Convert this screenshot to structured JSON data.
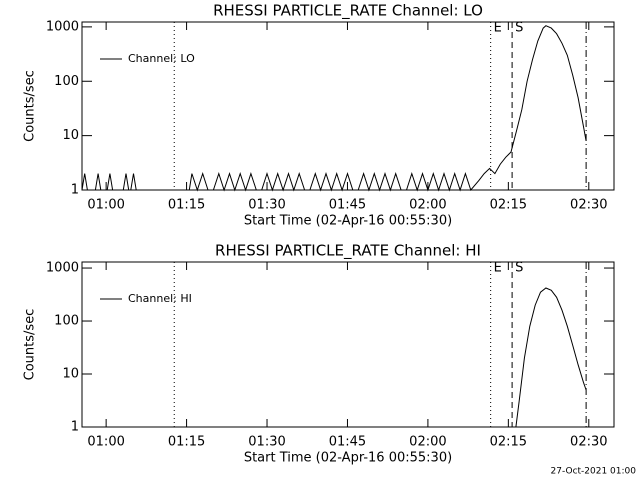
{
  "footer": "27-Oct-2021 01:00",
  "chart_data": [
    {
      "type": "line",
      "title": "RHESSI PARTICLE_RATE Channel: LO",
      "xlabel": "Start Time (02-Apr-16 00:55:30)",
      "ylabel": "Counts/sec",
      "log_y": true,
      "xlim": [
        55.5,
        154.7
      ],
      "ylim": [
        1,
        1230
      ],
      "xticks": [
        {
          "value": 60,
          "label": "01:00"
        },
        {
          "value": 75,
          "label": "01:15"
        },
        {
          "value": 90,
          "label": "01:30"
        },
        {
          "value": 105,
          "label": "01:45"
        },
        {
          "value": 120,
          "label": "02:00"
        },
        {
          "value": 135,
          "label": "02:15"
        },
        {
          "value": 150,
          "label": "02:30"
        }
      ],
      "yticks": [
        1,
        10,
        100,
        1000
      ],
      "legend": "upper left",
      "markers": [
        {
          "x": 72.7,
          "style": "dotted"
        },
        {
          "x": 131.7,
          "style": "dotted",
          "label": "E"
        },
        {
          "x": 135.7,
          "style": "dashed",
          "label": "S"
        },
        {
          "x": 149.5,
          "style": "dashdot"
        }
      ],
      "series": [
        {
          "name": "Channel: LO",
          "color": "#000000",
          "x": [
            55.5,
            56,
            56.5,
            58,
            58.5,
            59,
            60.2,
            60.7,
            61.2,
            63.2,
            63.7,
            64.2,
            64.6,
            65.1,
            65.6,
            75.5,
            76,
            77,
            78,
            79,
            80,
            81,
            82,
            83,
            84,
            85,
            86,
            87,
            88,
            89,
            90,
            91,
            92,
            93,
            94,
            95,
            96,
            97,
            98,
            99,
            100,
            101,
            102,
            103,
            104,
            105,
            106,
            107,
            108,
            109,
            110,
            111,
            112,
            113,
            114,
            115,
            116,
            117,
            118,
            119,
            120,
            121,
            122,
            123,
            124,
            125,
            126,
            127,
            128,
            129.5,
            130.5,
            131.5,
            132.5,
            133.5,
            134.5,
            135.5,
            136.5,
            137.5,
            138.5,
            139.5,
            140.5,
            141.5,
            142,
            143,
            144,
            145,
            146,
            147,
            148,
            149,
            149.5
          ],
          "values": [
            1,
            2,
            1,
            1,
            2,
            1,
            1,
            2,
            1,
            1,
            2,
            1,
            1,
            2,
            1,
            1,
            2,
            1,
            2,
            1,
            1,
            2,
            1,
            2,
            1,
            2,
            1,
            2,
            1,
            1,
            2,
            1,
            2,
            1,
            2,
            1,
            2,
            1,
            1,
            2,
            1,
            2,
            1,
            2,
            1,
            2,
            1,
            1,
            2,
            1,
            2,
            1,
            2,
            1,
            2,
            1,
            1,
            2,
            1,
            2,
            1,
            2,
            1,
            2,
            1,
            2,
            1,
            2,
            1,
            1.5,
            2,
            2.5,
            2,
            3,
            4,
            5,
            12,
            30,
            100,
            250,
            550,
            950,
            1050,
            950,
            750,
            500,
            300,
            130,
            50,
            15,
            8
          ]
        }
      ]
    },
    {
      "type": "line",
      "title": "RHESSI PARTICLE_RATE Channel: HI",
      "xlabel": "Start Time (02-Apr-16 00:55:30)",
      "ylabel": "Counts/sec",
      "log_y": true,
      "xlim": [
        55.5,
        154.7
      ],
      "ylim": [
        1,
        1300
      ],
      "xticks": [
        {
          "value": 60,
          "label": "01:00"
        },
        {
          "value": 75,
          "label": "01:15"
        },
        {
          "value": 90,
          "label": "01:30"
        },
        {
          "value": 105,
          "label": "01:45"
        },
        {
          "value": 120,
          "label": "02:00"
        },
        {
          "value": 135,
          "label": "02:15"
        },
        {
          "value": 150,
          "label": "02:30"
        }
      ],
      "yticks": [
        1,
        10,
        100,
        1000
      ],
      "legend": "upper left",
      "markers": [
        {
          "x": 72.7,
          "style": "dotted"
        },
        {
          "x": 131.7,
          "style": "dotted",
          "label": "E"
        },
        {
          "x": 135.7,
          "style": "dashed",
          "label": "S"
        },
        {
          "x": 149.5,
          "style": "dashdot"
        }
      ],
      "series": [
        {
          "name": "Channel: HI",
          "color": "#000000",
          "x": [
            136.4,
            137,
            138,
            139,
            140,
            141,
            142,
            143,
            144,
            145,
            146,
            147,
            148,
            149,
            149.5
          ],
          "values": [
            1,
            3,
            20,
            80,
            200,
            350,
            420,
            380,
            280,
            160,
            80,
            35,
            15,
            7,
            5
          ]
        }
      ]
    }
  ]
}
